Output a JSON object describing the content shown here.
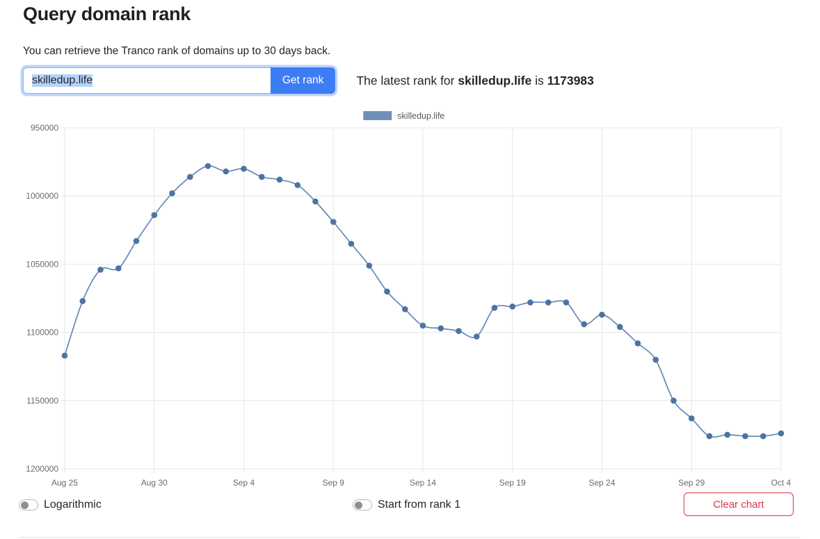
{
  "page": {
    "title": "Query domain rank",
    "description": "You can retrieve the Tranco rank of domains up to 30 days back."
  },
  "query": {
    "input_value": "skilledup.life",
    "button_label": "Get rank",
    "result": {
      "prefix": "The latest rank for ",
      "domain": "skilledup.life",
      "middle": " is ",
      "rank": "1173983"
    }
  },
  "chart_data": {
    "type": "line",
    "legend": [
      "skilledup.life"
    ],
    "legend_position": "top",
    "grid": true,
    "y_axis_reversed": true,
    "y_min": 950000,
    "y_max": 1200000,
    "y_ticks": [
      950000,
      1000000,
      1050000,
      1100000,
      1150000,
      1200000
    ],
    "x_tick_labels": [
      "Aug 25",
      "Aug 30",
      "Sep 4",
      "Sep 9",
      "Sep 14",
      "Sep 19",
      "Sep 24",
      "Sep 29",
      "Oct 4"
    ],
    "x_tick_every": 5,
    "x": [
      "Aug 25",
      "Aug 26",
      "Aug 27",
      "Aug 28",
      "Aug 29",
      "Aug 30",
      "Aug 31",
      "Sep 1",
      "Sep 2",
      "Sep 3",
      "Sep 4",
      "Sep 5",
      "Sep 6",
      "Sep 7",
      "Sep 8",
      "Sep 9",
      "Sep 10",
      "Sep 11",
      "Sep 12",
      "Sep 13",
      "Sep 14",
      "Sep 15",
      "Sep 16",
      "Sep 17",
      "Sep 18",
      "Sep 19",
      "Sep 20",
      "Sep 21",
      "Sep 22",
      "Sep 23",
      "Sep 24",
      "Sep 25",
      "Sep 26",
      "Sep 27",
      "Sep 28",
      "Sep 29",
      "Sep 30",
      "Oct 1",
      "Oct 2",
      "Oct 3",
      "Oct 4"
    ],
    "series": [
      {
        "name": "skilledup.life",
        "values": [
          1117000,
          1077000,
          1054000,
          1053000,
          1033000,
          1014000,
          998000,
          986000,
          978000,
          982000,
          980000,
          986000,
          988000,
          992000,
          1004000,
          1019000,
          1035000,
          1051000,
          1070000,
          1083000,
          1095000,
          1097000,
          1099000,
          1103000,
          1082000,
          1081000,
          1078000,
          1078000,
          1078000,
          1094000,
          1087000,
          1096000,
          1108000,
          1120000,
          1150000,
          1163000,
          1176000,
          1175000,
          1176000,
          1176000,
          1173983
        ]
      }
    ],
    "colors": {
      "line": "#6488b5",
      "point": "#4c73a2",
      "legend_box": "#6f8fb8",
      "grid": "#e7e7e7",
      "tick_text": "#66696d"
    }
  },
  "controls": {
    "logarithmic_label": "Logarithmic",
    "logarithmic_on": false,
    "start_from_rank1_label": "Start from rank 1",
    "start_from_rank1_on": false,
    "clear_button_label": "Clear chart"
  },
  "colors": {
    "accent_blue": "#3d7df4",
    "danger_red": "#dc3545",
    "selection_blue": "#b6d3fa"
  }
}
